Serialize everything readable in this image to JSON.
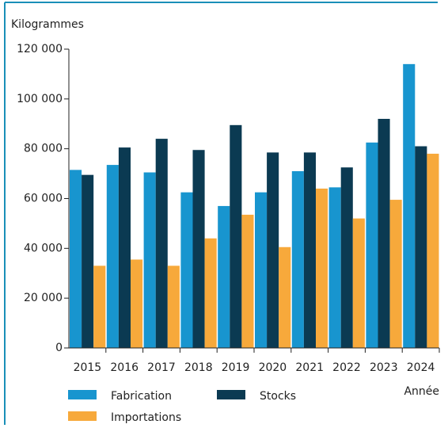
{
  "chart_data": {
    "type": "bar",
    "y_label": "Kilogrammes",
    "x_label": "Année",
    "categories": [
      "2015",
      "2016",
      "2017",
      "2018",
      "2019",
      "2020",
      "2021",
      "2022",
      "2023",
      "2024"
    ],
    "series": [
      {
        "name": "Fabrication",
        "color": "#1895cf",
        "values": [
          71500,
          73500,
          70500,
          62500,
          57000,
          62500,
          71000,
          64500,
          82500,
          114000
        ]
      },
      {
        "name": "Stocks",
        "color": "#0b3a52",
        "values": [
          69500,
          80500,
          84000,
          79500,
          89500,
          78500,
          78500,
          72500,
          92000,
          81000
        ]
      },
      {
        "name": "Importations",
        "color": "#f7a93b",
        "values": [
          33000,
          35500,
          33000,
          44000,
          53500,
          40500,
          64000,
          52000,
          59500,
          78000
        ]
      }
    ],
    "ylim": [
      0,
      120000
    ],
    "yticks": [
      {
        "value": 0,
        "label": "0"
      },
      {
        "value": 20000,
        "label": "20 000"
      },
      {
        "value": 40000,
        "label": "40 000"
      },
      {
        "value": 60000,
        "label": "60 000"
      },
      {
        "value": 80000,
        "label": "80 000"
      },
      {
        "value": 100000,
        "label": "100 000"
      },
      {
        "value": 120000,
        "label": "120 000"
      }
    ]
  }
}
